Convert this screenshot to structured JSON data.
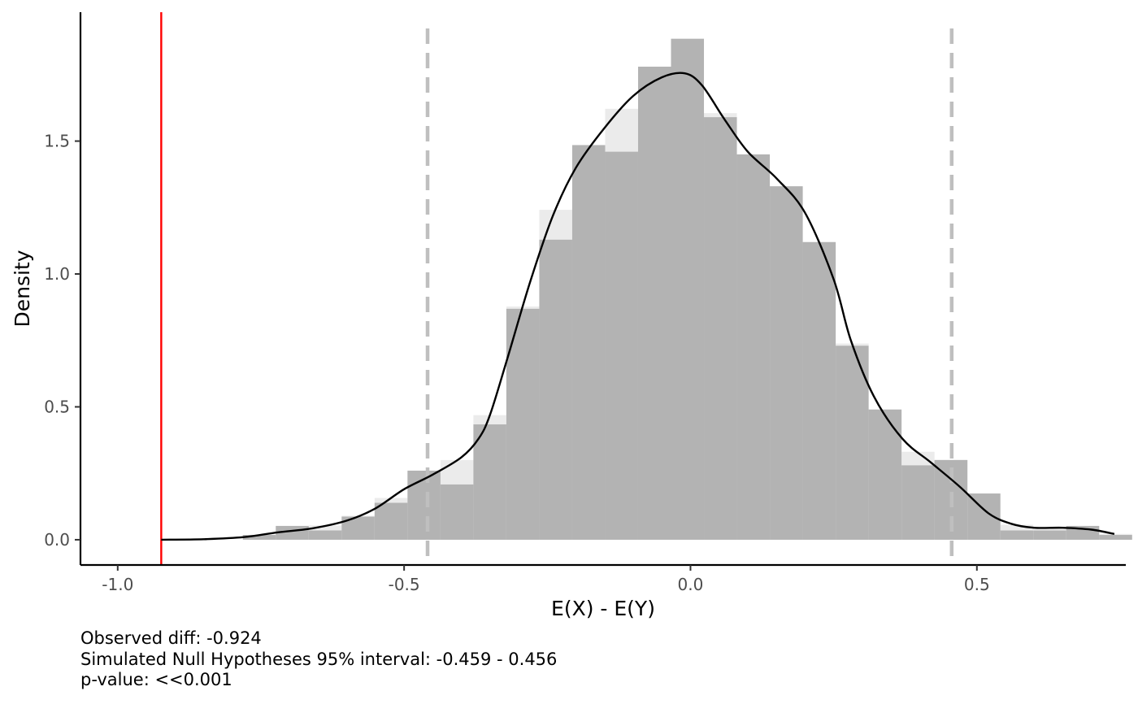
{
  "chart_data": {
    "type": "histogram",
    "xlabel": "E(X) - E(Y)",
    "ylabel": "Density",
    "xlim": [
      -1.065,
      0.76
    ],
    "ylim": [
      -0.095,
      1.985
    ],
    "x_ticks": [
      -1.0,
      -0.5,
      0.0,
      0.5
    ],
    "x_tick_labels": [
      "-1.0",
      "-0.5",
      "0.0",
      "0.5"
    ],
    "y_ticks": [
      0.0,
      0.5,
      1.0,
      1.5
    ],
    "y_tick_labels": [
      "0.0",
      "0.5",
      "1.0",
      "1.5"
    ],
    "grid": false,
    "bin_width": 0.0575,
    "bins": [
      {
        "x0": -0.7815,
        "x1": -0.724,
        "density": 0.018
      },
      {
        "x0": -0.724,
        "x1": -0.6665,
        "density": 0.052
      },
      {
        "x0": -0.6665,
        "x1": -0.609,
        "density": 0.035
      },
      {
        "x0": -0.609,
        "x1": -0.5515,
        "density": 0.087
      },
      {
        "x0": -0.5515,
        "x1": -0.494,
        "density": 0.139
      },
      {
        "x0": -0.494,
        "x1": -0.4365,
        "density": 0.26
      },
      {
        "x0": -0.4365,
        "x1": -0.379,
        "density": 0.208
      },
      {
        "x0": -0.379,
        "x1": -0.3215,
        "density": 0.434
      },
      {
        "x0": -0.3215,
        "x1": -0.264,
        "density": 0.869
      },
      {
        "x0": -0.264,
        "x1": -0.2065,
        "density": 1.129
      },
      {
        "x0": -0.2065,
        "x1": -0.149,
        "density": 1.485
      },
      {
        "x0": -0.149,
        "x1": -0.0915,
        "density": 1.46
      },
      {
        "x0": -0.0915,
        "x1": -0.034,
        "density": 1.78
      },
      {
        "x0": -0.034,
        "x1": 0.0235,
        "density": 1.885
      },
      {
        "x0": 0.0235,
        "x1": 0.081,
        "density": 1.59
      },
      {
        "x0": 0.081,
        "x1": 0.1385,
        "density": 1.45
      },
      {
        "x0": 0.1385,
        "x1": 0.196,
        "density": 1.33
      },
      {
        "x0": 0.196,
        "x1": 0.2535,
        "density": 1.12
      },
      {
        "x0": 0.2535,
        "x1": 0.311,
        "density": 0.73
      },
      {
        "x0": 0.311,
        "x1": 0.3685,
        "density": 0.49
      },
      {
        "x0": 0.3685,
        "x1": 0.426,
        "density": 0.28
      },
      {
        "x0": 0.426,
        "x1": 0.4835,
        "density": 0.3
      },
      {
        "x0": 0.4835,
        "x1": 0.541,
        "density": 0.174
      },
      {
        "x0": 0.541,
        "x1": 0.5985,
        "density": 0.035
      },
      {
        "x0": 0.5985,
        "x1": 0.656,
        "density": 0.035
      },
      {
        "x0": 0.656,
        "x1": 0.7135,
        "density": 0.052
      },
      {
        "x0": 0.7135,
        "x1": 0.771,
        "density": 0.018
      }
    ],
    "density_curve": {
      "x": [
        -0.924,
        -0.85,
        -0.78,
        -0.72,
        -0.66,
        -0.6,
        -0.55,
        -0.5,
        -0.45,
        -0.4,
        -0.37,
        -0.35,
        -0.32,
        -0.28,
        -0.24,
        -0.2,
        -0.15,
        -0.1,
        -0.05,
        -0.01,
        0.02,
        0.06,
        0.1,
        0.15,
        0.2,
        0.25,
        0.28,
        0.32,
        0.37,
        0.42,
        0.47,
        0.52,
        0.56,
        0.6,
        0.65,
        0.7,
        0.74
      ],
      "y": [
        0.0,
        0.002,
        0.01,
        0.028,
        0.043,
        0.072,
        0.118,
        0.19,
        0.245,
        0.31,
        0.38,
        0.47,
        0.68,
        0.97,
        1.22,
        1.4,
        1.55,
        1.67,
        1.74,
        1.755,
        1.71,
        1.58,
        1.46,
        1.36,
        1.23,
        0.98,
        0.75,
        0.54,
        0.38,
        0.29,
        0.2,
        0.1,
        0.06,
        0.045,
        0.045,
        0.038,
        0.022
      ]
    },
    "observed_diff": -0.924,
    "interval_lines": [
      -0.459,
      0.456
    ],
    "colors": {
      "bars": "#b3b3b3",
      "bar_background": "#ebebeb",
      "density_line": "#000000",
      "observed_line": "#ff0000",
      "interval_lines": "#bfbfbf",
      "tick_labels": "#4d4d4d"
    }
  },
  "caption": {
    "line1": "Observed diff: -0.924",
    "line2": "Simulated Null Hypotheses 95% interval: -0.459 - 0.456",
    "line3": "p-value: <<0.001"
  }
}
